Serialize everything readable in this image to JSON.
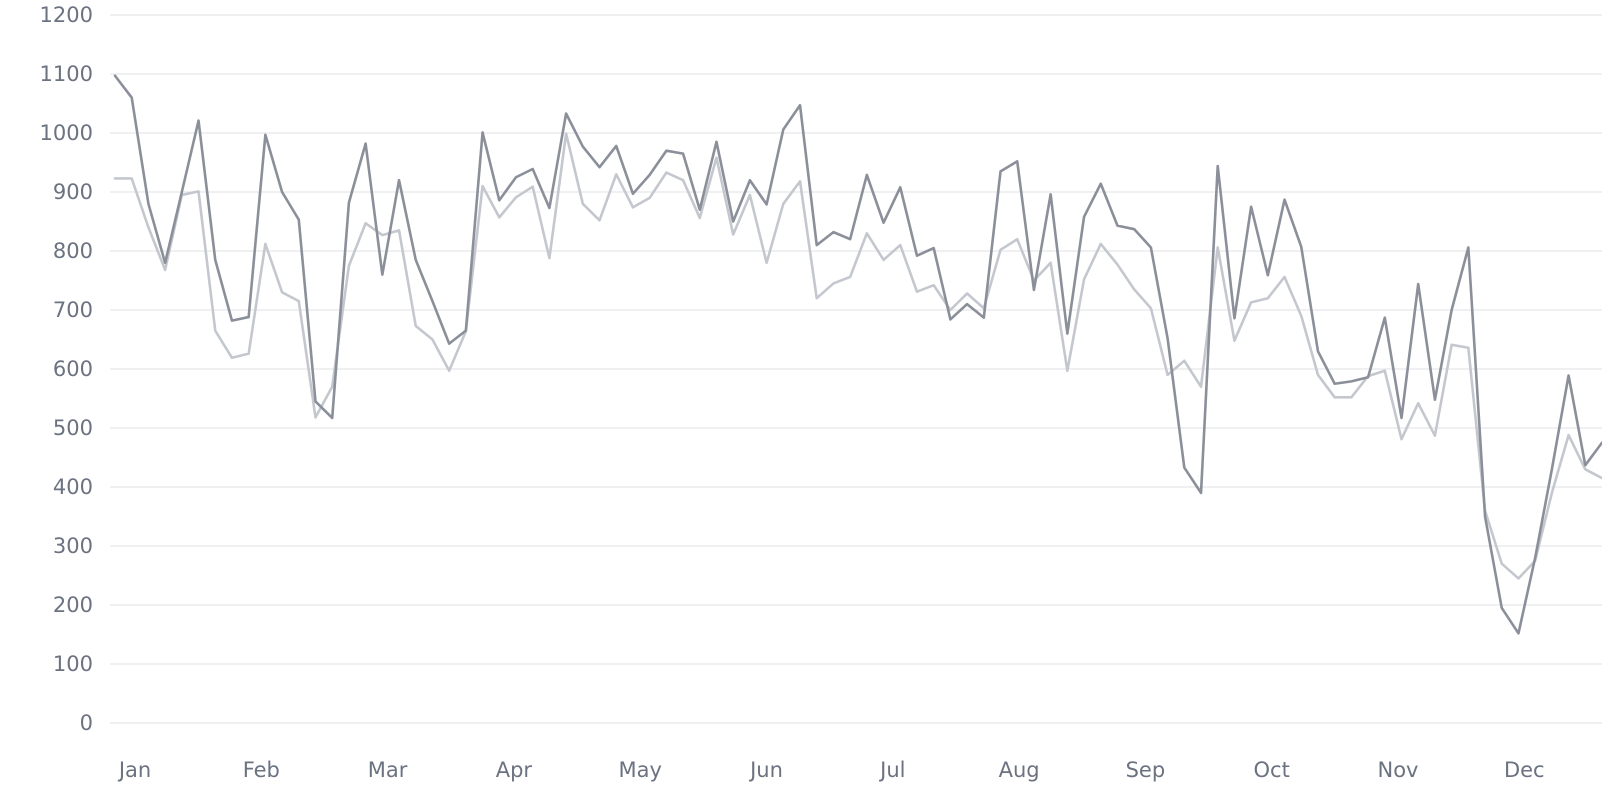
{
  "chart_data": {
    "type": "line",
    "title": "",
    "xlabel": "",
    "ylabel": "",
    "ylim": [
      0,
      1200
    ],
    "y_ticks": [
      0,
      100,
      200,
      300,
      400,
      500,
      600,
      700,
      800,
      900,
      1000,
      1100,
      1200
    ],
    "x_tick_labels": [
      "Jan",
      "Feb",
      "Mar",
      "Apr",
      "May",
      "Jun",
      "Jul",
      "Aug",
      "Sep",
      "Oct",
      "Nov",
      "Dec"
    ],
    "grid": true,
    "legend": "none",
    "series": [
      {
        "color": "#8a8f99",
        "values": [
          1097,
          1060,
          880,
          780,
          900,
          1021,
          785,
          682,
          688,
          997,
          900,
          853,
          545,
          517,
          882,
          982,
          760,
          920,
          785,
          715,
          643,
          665,
          1001,
          886,
          925,
          939,
          873,
          1033,
          977,
          942,
          978,
          897,
          929,
          970,
          965,
          870,
          985,
          850,
          920,
          879,
          1006,
          1047,
          810,
          832,
          820,
          929,
          848,
          908,
          792,
          805,
          684,
          710,
          687,
          935,
          952,
          734,
          896,
          660,
          858,
          914,
          843,
          837,
          806,
          652,
          433,
          390,
          944,
          686,
          875,
          759,
          887,
          807,
          630,
          575,
          579,
          586,
          687,
          517,
          744,
          548,
          700,
          806,
          350,
          195,
          152,
          280,
          430,
          589,
          437,
          475
        ]
      },
      {
        "color": "#c4c8ce",
        "values": [
          923,
          923,
          840,
          768,
          895,
          901,
          665,
          619,
          626,
          812,
          730,
          715,
          518,
          570,
          775,
          847,
          827,
          835,
          673,
          650,
          597,
          664,
          910,
          857,
          891,
          909,
          788,
          999,
          880,
          852,
          930,
          874,
          890,
          933,
          920,
          856,
          958,
          828,
          895,
          780,
          880,
          918,
          720,
          745,
          756,
          830,
          785,
          810,
          731,
          742,
          700,
          728,
          703,
          802,
          820,
          750,
          780,
          597,
          752,
          812,
          777,
          735,
          703,
          590,
          614,
          570,
          806,
          648,
          713,
          720,
          756,
          690,
          590,
          552,
          552,
          588,
          597,
          481,
          542,
          487,
          641,
          636,
          360,
          270,
          245,
          275,
          390,
          488,
          430,
          415
        ]
      }
    ]
  }
}
